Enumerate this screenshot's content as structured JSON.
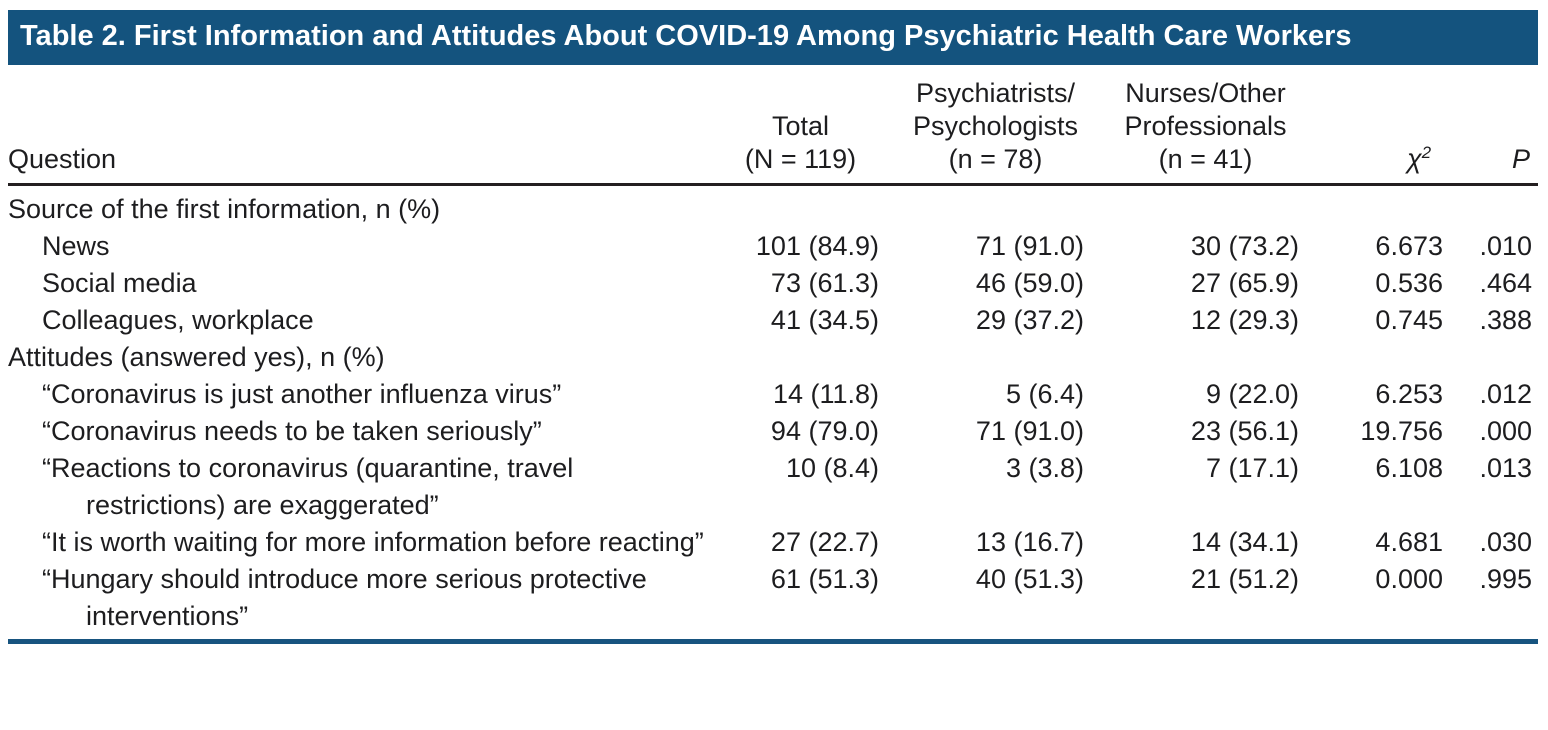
{
  "title": "Table 2. First Information and Attitudes About COVID-19 Among Psychiatric Health Care Workers",
  "colors": {
    "header_bg": "#14537E",
    "rule_blue": "#17547F",
    "rule_dark": "#231F20"
  },
  "header": {
    "question": "Question",
    "total_line1": "Total",
    "total_line2": "(N = 119)",
    "group1_line1": "Psychiatrists/",
    "group1_line2": "Psychologists",
    "group1_line3": "(n = 78)",
    "group2_line1": "Nurses/Other",
    "group2_line2": "Professionals",
    "group2_line3": "(n = 41)",
    "chi_base": "χ",
    "chi_sup": "2",
    "p": "P"
  },
  "rows": [
    {
      "type": "section",
      "question": "Source of the first information, n (%)"
    },
    {
      "type": "data",
      "question": "News",
      "total": "101 (84.9)",
      "psych": "71 (91.0)",
      "nurses": "30 (73.2)",
      "chi2": "6.673",
      "p": ".010"
    },
    {
      "type": "data",
      "question": "Social media",
      "total": "73 (61.3)",
      "psych": "46 (59.0)",
      "nurses": "27 (65.9)",
      "chi2": "0.536",
      "p": ".464"
    },
    {
      "type": "data",
      "question": "Colleagues, workplace",
      "total": "41 (34.5)",
      "psych": "29 (37.2)",
      "nurses": "12 (29.3)",
      "chi2": "0.745",
      "p": ".388"
    },
    {
      "type": "section",
      "question": "Attitudes (answered yes), n (%)"
    },
    {
      "type": "data",
      "question": "“Coronavirus is just another influenza virus”",
      "total": "14 (11.8)",
      "psych": "5 (6.4)",
      "nurses": "9 (22.0)",
      "chi2": "6.253",
      "p": ".012"
    },
    {
      "type": "data",
      "question": "“Coronavirus needs to be taken seriously”",
      "total": "94 (79.0)",
      "psych": "71 (91.0)",
      "nurses": "23 (56.1)",
      "chi2": "19.756",
      "p": ".000"
    },
    {
      "type": "data",
      "question": "“Reactions to coronavirus (quarantine, travel restrictions) are exaggerated”",
      "total": "10 (8.4)",
      "psych": "3 (3.8)",
      "nurses": "7 (17.1)",
      "chi2": "6.108",
      "p": ".013"
    },
    {
      "type": "data",
      "question": "“It is worth waiting for more information before reacting”",
      "total": "27 (22.7)",
      "psych": "13 (16.7)",
      "nurses": "14 (34.1)",
      "chi2": "4.681",
      "p": ".030"
    },
    {
      "type": "data",
      "question": "“Hungary should introduce more serious protective interventions”",
      "total": "61 (51.3)",
      "psych": "40 (51.3)",
      "nurses": "21 (51.2)",
      "chi2": "0.000",
      "p": ".995"
    }
  ]
}
